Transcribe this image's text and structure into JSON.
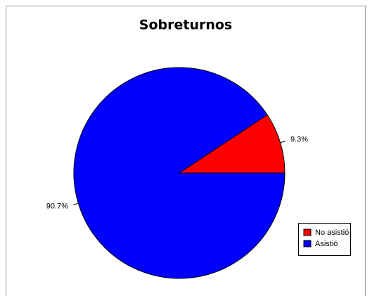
{
  "chart_data": {
    "type": "pie",
    "title": "Sobreturnos",
    "categories": [
      "No asistió",
      "Asistió"
    ],
    "values": [
      9.3,
      90.7
    ],
    "value_labels": [
      "9.3%",
      "90.7%"
    ],
    "colors": [
      "#ff0000",
      "#0000ff"
    ],
    "legend": "bottomright"
  }
}
